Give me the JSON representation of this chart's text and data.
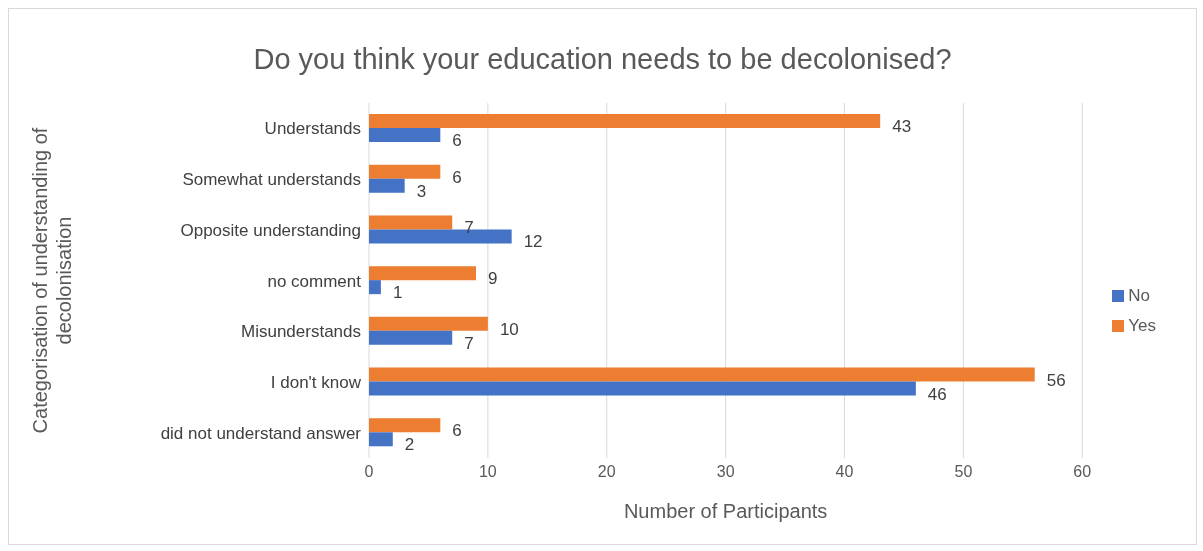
{
  "chart_data": {
    "type": "bar",
    "orientation": "horizontal",
    "title": "Do you think your education needs to be decolonised?",
    "xlabel": "Number of Participants",
    "ylabel": "Categorisation of understanding of decolonisation",
    "categories": [
      "Understands",
      "Somewhat understands",
      "Opposite understanding",
      "no comment",
      "Misunderstands",
      "I don't know",
      "did not understand answer"
    ],
    "series": [
      {
        "name": "Yes",
        "color": "#ed7d31",
        "values": [
          43,
          6,
          7,
          9,
          10,
          56,
          6
        ]
      },
      {
        "name": "No",
        "color": "#4472c4",
        "values": [
          6,
          3,
          12,
          1,
          7,
          46,
          2
        ]
      }
    ],
    "xlim": [
      0,
      60
    ],
    "xticks": [
      0,
      10,
      20,
      30,
      40,
      50,
      60
    ],
    "grid": "x",
    "legend": "right",
    "data_labels": true
  }
}
